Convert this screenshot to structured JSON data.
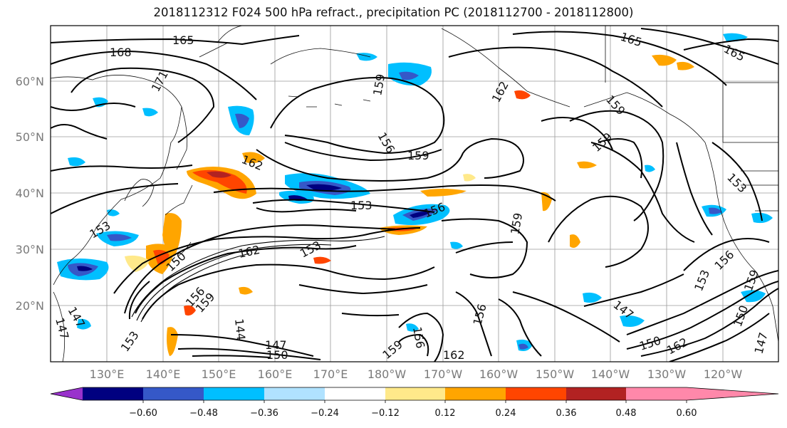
{
  "title": "2018112312 F024 500 hPa refract., precipitation PC (2018112700 - 2018112800)",
  "lat_labels": [
    "60°N",
    "50°N",
    "40°N",
    "30°N",
    "20°N"
  ],
  "lon_labels": [
    "130°E",
    "140°E",
    "150°E",
    "160°E",
    "170°E",
    "180°W",
    "170°W",
    "160°W",
    "150°W",
    "140°W",
    "130°W",
    "120°W"
  ],
  "colorbar": {
    "ticks": [
      "−0.60",
      "−0.48",
      "−0.36",
      "−0.24",
      "−0.12",
      "0.12",
      "0.24",
      "0.36",
      "0.48",
      "0.60"
    ],
    "colors": [
      "#9932cc",
      "#000080",
      "#3558c8",
      "#00bfff",
      "#b0e2ff",
      "#ffffff",
      "#ffe98a",
      "#ffa500",
      "#ff4500",
      "#b22222",
      "#ff88aa"
    ]
  },
  "contour_labels": [
    "165",
    "168",
    "171",
    "159",
    "162",
    "165",
    "165",
    "159",
    "159",
    "159",
    "162",
    "153",
    "156",
    "159",
    "162",
    "150",
    "153",
    "156",
    "147",
    "144",
    "147",
    "150",
    "153",
    "156",
    "159",
    "162",
    "147",
    "150",
    "162",
    "153",
    "156",
    "159",
    "147",
    "153",
    "147",
    "156",
    "153",
    "150",
    "156",
    "159"
  ]
}
